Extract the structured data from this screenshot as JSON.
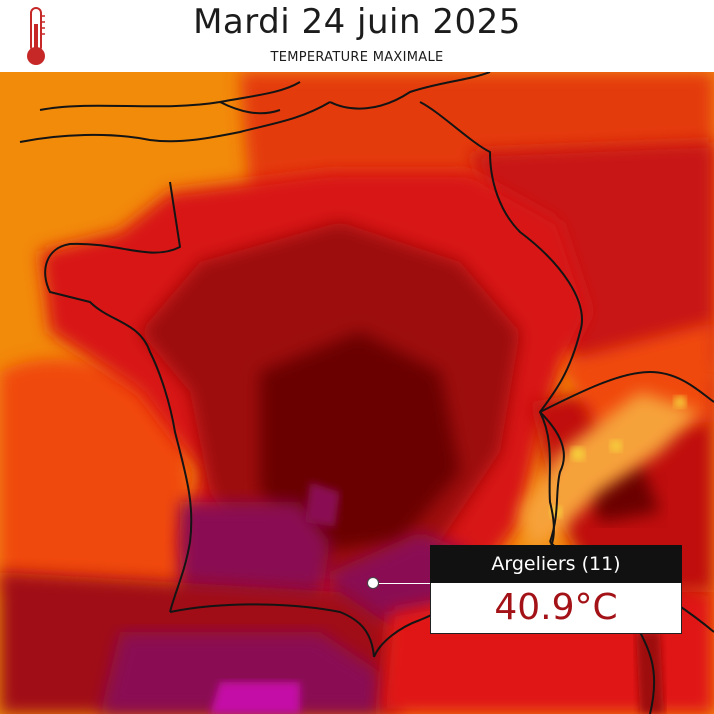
{
  "header": {
    "title": "Mardi 24 juin 2025",
    "subtitle": "TEMPERATURE MAXIMALE",
    "icon": "thermometer-icon"
  },
  "callout": {
    "location": "Argeliers (11)",
    "value": "40.9°C"
  },
  "colors": {
    "orange": "#f28a0a",
    "light_red": "#f04a0a",
    "red": "#e01414",
    "dark_red": "#9d0a0a",
    "very_dark_red": "#6a0606",
    "purple": "#8a0b52",
    "magenta": "#c40fa6",
    "cool_highlight": "#f6d23a",
    "value_text": "#a31217"
  }
}
